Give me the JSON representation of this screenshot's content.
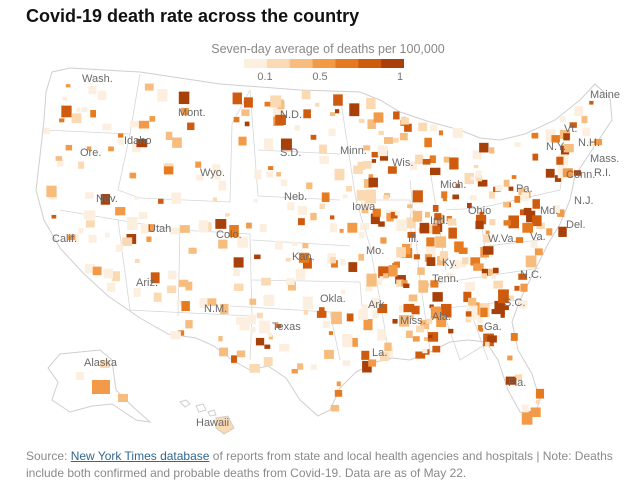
{
  "title": "Covid-19 death rate across the country",
  "legend": {
    "title": "Seven-day average of deaths per 100,000",
    "ticks": [
      "0.1",
      "0.5",
      "1"
    ],
    "colors": [
      "#fcefdf",
      "#fad9b3",
      "#f6bd7f",
      "#f29a48",
      "#e67a1f",
      "#cf5b0f",
      "#a8400a"
    ]
  },
  "states": [
    "Wash.",
    "Ore.",
    "Idaho",
    "Mont.",
    "Wyo.",
    "Nev.",
    "Calif.",
    "Utah",
    "Colo.",
    "Ariz.",
    "N.M.",
    "N.D.",
    "S.D.",
    "Neb.",
    "Kan.",
    "Okla.",
    "Texas",
    "Minn.",
    "Iowa",
    "Mo.",
    "Ark.",
    "La.",
    "Wis.",
    "Ill.",
    "Mich.",
    "Ind.",
    "Ohio",
    "Ky.",
    "Tenn.",
    "Miss.",
    "Ala.",
    "Ga.",
    "Fla.",
    "S.C.",
    "N.C.",
    "Va.",
    "W.Va.",
    "Pa.",
    "N.Y.",
    "Vt.",
    "N.H.",
    "Maine",
    "Mass.",
    "Conn.",
    "R.I.",
    "N.J.",
    "Del.",
    "Md.",
    "Alaska",
    "Hawaii"
  ],
  "source": {
    "prefix": "Source: ",
    "link": "New York Times database",
    "rest": " of reports from state and local health agencies and hospitals | Note: Deaths include both confirmed and probable deaths from Covid-19. Data are as of May 22."
  }
}
